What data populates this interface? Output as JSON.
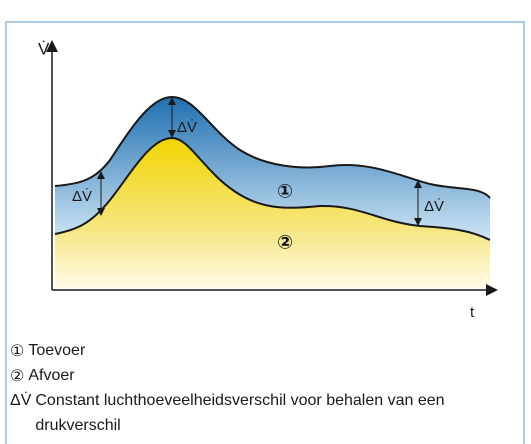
{
  "diagram": {
    "y_axis_label": "V̇",
    "x_axis_label": "t",
    "regions": [
      "①",
      "②"
    ],
    "delta_labels": [
      "ΔV̇",
      "ΔV̇",
      "ΔV̇"
    ]
  },
  "legend": [
    {
      "symbol": "①",
      "text": "Toevoer"
    },
    {
      "symbol": "②",
      "text": "Afvoer"
    },
    {
      "symbol": "ΔV̇",
      "text": "Constant luchthoeveelheidsverschil voor behalen van een drukverschil"
    }
  ]
}
